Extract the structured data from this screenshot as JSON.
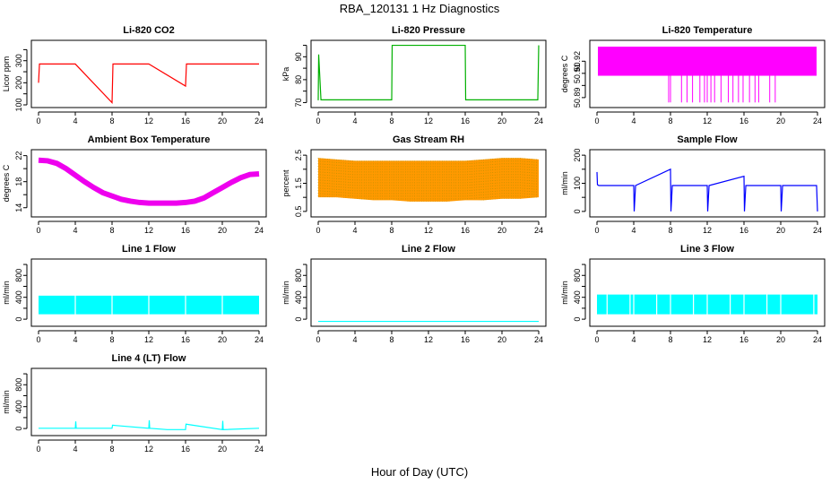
{
  "figure": {
    "title": "RBA_120131  1 Hz Diagnostics",
    "xlabel": "Hour of Day (UTC)"
  },
  "chart_data": [
    {
      "type": "line",
      "title": "Li-820 CO2",
      "ylabel": "Licor ppm",
      "color": "#ff0000",
      "xlim": [
        0,
        24
      ],
      "ylim": [
        100,
        380
      ],
      "xticks": [
        0,
        4,
        8,
        12,
        16,
        20,
        24
      ],
      "yticks": [
        100,
        150,
        200,
        250,
        300,
        350
      ],
      "yticklabels": [
        "100",
        "",
        "200",
        "",
        "300",
        ""
      ],
      "x": [
        0,
        0.1,
        0.3,
        1.0,
        2.0,
        4.0,
        8.0,
        8.1,
        12.0,
        16.0,
        16.1,
        20.0,
        24.0
      ],
      "y": [
        200,
        285,
        285,
        285,
        285,
        285,
        110,
        285,
        285,
        185,
        285,
        285,
        285
      ]
    },
    {
      "type": "line",
      "title": "Li-820 Pressure",
      "ylabel": "kPa",
      "color": "#00b000",
      "xlim": [
        0,
        24
      ],
      "ylim": [
        69,
        96
      ],
      "xticks": [
        0,
        4,
        8,
        12,
        16,
        20,
        24
      ],
      "yticks": [
        70,
        75,
        80,
        85,
        90,
        95
      ],
      "yticklabels": [
        "70",
        "",
        "80",
        "",
        "90",
        ""
      ],
      "x": [
        0,
        0.05,
        0.3,
        8.0,
        8.05,
        16.0,
        16.05,
        23.9,
        24.0
      ],
      "y": [
        71,
        91,
        71.2,
        71.2,
        95,
        95,
        71.2,
        71.2,
        95
      ]
    },
    {
      "type": "line",
      "title": "Li-820 Temperature",
      "ylabel": "degrees C",
      "color": "#ff00ff",
      "xlim": [
        0,
        24
      ],
      "ylim": [
        50.884,
        50.935
      ],
      "xticks": [
        0,
        4,
        8,
        12,
        16,
        20,
        24
      ],
      "yticks": [
        50.89,
        50.9,
        50.91,
        50.92
      ],
      "yticklabels": [
        "50.89",
        "",
        "50.91",
        "50.92"
      ],
      "band": [
        50.908,
        50.932
      ],
      "dips_x": [
        7.8,
        8.0,
        9.2,
        9.8,
        10.4,
        11.2,
        11.7,
        12.0,
        12.4,
        12.8,
        13.5,
        14.3,
        14.8,
        15.4,
        15.9,
        16.6,
        17.2,
        17.6,
        18.8,
        19.4
      ],
      "dips_y": 50.886
    },
    {
      "type": "line",
      "title": "Ambient Box Temperature",
      "ylabel": "degrees C",
      "color": "#ee00ee",
      "xlim": [
        0,
        24
      ],
      "ylim": [
        13,
        22.5
      ],
      "xticks": [
        0,
        4,
        8,
        12,
        16,
        20,
        24
      ],
      "yticks": [
        14,
        16,
        18,
        20,
        22
      ],
      "yticklabels": [
        "14",
        "",
        "18",
        "",
        "22"
      ],
      "x": [
        0,
        1,
        2,
        3,
        4,
        5,
        6,
        7,
        8,
        9,
        10,
        11,
        12,
        13,
        14,
        15,
        16,
        17,
        18,
        19,
        20,
        21,
        22,
        23,
        24
      ],
      "y": [
        21.3,
        21.2,
        20.8,
        20.0,
        19.0,
        18.0,
        17.1,
        16.3,
        15.8,
        15.3,
        15.0,
        14.8,
        14.7,
        14.7,
        14.7,
        14.7,
        14.8,
        15.0,
        15.5,
        16.3,
        17.1,
        17.9,
        18.6,
        19.1,
        19.2
      ]
    },
    {
      "type": "area",
      "title": "Gas Stream RH",
      "ylabel": "percent",
      "color": "#ff9900",
      "secondary_color": "#b89000",
      "xlim": [
        0,
        24
      ],
      "ylim": [
        0.4,
        2.6
      ],
      "xticks": [
        0,
        4,
        8,
        12,
        16,
        20,
        24
      ],
      "yticks": [
        0.5,
        1.0,
        1.5,
        2.0,
        2.5
      ],
      "yticklabels": [
        "0.5",
        "",
        "1.5",
        "",
        "2.5"
      ],
      "x": [
        0,
        2,
        4,
        6,
        8,
        10,
        12,
        14,
        16,
        18,
        20,
        22,
        24
      ],
      "upper": [
        2.4,
        2.35,
        2.3,
        2.3,
        2.3,
        2.3,
        2.3,
        2.3,
        2.3,
        2.35,
        2.4,
        2.4,
        2.35
      ],
      "lower": [
        1.0,
        1.0,
        0.95,
        0.9,
        0.9,
        0.85,
        0.85,
        0.85,
        0.9,
        0.9,
        0.95,
        0.95,
        1.0
      ]
    },
    {
      "type": "line",
      "title": "Sample Flow",
      "ylabel": "ml/min",
      "color": "#0000ff",
      "xlim": [
        0,
        24
      ],
      "ylim": [
        -10,
        210
      ],
      "xticks": [
        0,
        4,
        8,
        12,
        16,
        20,
        24
      ],
      "yticks": [
        0,
        50,
        100,
        150,
        200
      ],
      "yticklabels": [
        "0",
        "",
        "100",
        "",
        "200"
      ],
      "x": [
        0,
        0.05,
        0.2,
        4.0,
        4.05,
        4.2,
        8.0,
        8.05,
        8.2,
        12.0,
        12.05,
        12.2,
        16.0,
        16.05,
        16.2,
        20.0,
        20.05,
        20.2,
        23.9,
        24.0
      ],
      "y": [
        140,
        95,
        92,
        92,
        0,
        92,
        150,
        0,
        92,
        92,
        0,
        92,
        125,
        0,
        92,
        92,
        0,
        92,
        92,
        0
      ]
    },
    {
      "type": "area",
      "title": "Line 1 Flow",
      "ylabel": "ml/min",
      "color": "#00ffff",
      "xlim": [
        0,
        24
      ],
      "ylim": [
        -80,
        1050
      ],
      "xticks": [
        0,
        4,
        8,
        12,
        16,
        20,
        24
      ],
      "yticks": [
        0,
        200,
        400,
        600,
        800,
        1000
      ],
      "yticklabels": [
        "0",
        "",
        "400",
        "",
        "800",
        ""
      ],
      "x": [
        0,
        24
      ],
      "upper": [
        430,
        430
      ],
      "lower": [
        90,
        90
      ],
      "gaps_x": [
        4.0,
        8.0,
        12.0,
        16.0,
        20.0
      ]
    },
    {
      "type": "line",
      "title": "Line 2 Flow",
      "ylabel": "ml/min",
      "color": "#00ffff",
      "xlim": [
        0,
        24
      ],
      "ylim": [
        -80,
        1050
      ],
      "xticks": [
        0,
        4,
        8,
        12,
        16,
        20,
        24
      ],
      "yticks": [
        0,
        200,
        400,
        600,
        800,
        1000
      ],
      "yticklabels": [
        "0",
        "",
        "400",
        "",
        "800",
        ""
      ],
      "x": [
        0,
        24
      ],
      "y": [
        -40,
        -40
      ]
    },
    {
      "type": "area",
      "title": "Line 3 Flow",
      "ylabel": "ml/min",
      "color": "#00ffff",
      "xlim": [
        0,
        24
      ],
      "ylim": [
        -80,
        1050
      ],
      "xticks": [
        0,
        4,
        8,
        12,
        16,
        20,
        24
      ],
      "yticks": [
        0,
        200,
        400,
        600,
        800,
        1000
      ],
      "yticklabels": [
        "0",
        "",
        "400",
        "",
        "800",
        ""
      ],
      "x": [
        0,
        24
      ],
      "upper": [
        450,
        450
      ],
      "lower": [
        90,
        90
      ],
      "gaps_x": [
        1.1,
        3.6,
        4.0,
        6.5,
        8.0,
        10.5,
        12.0,
        14.5,
        16.0,
        18.5,
        20.0,
        23.6
      ]
    },
    {
      "type": "line",
      "title": "Line 4 (LT) Flow",
      "ylabel": "ml/min",
      "color": "#00ffff",
      "xlim": [
        0,
        24
      ],
      "ylim": [
        -80,
        1050
      ],
      "xticks": [
        0,
        4,
        8,
        12,
        16,
        20,
        24
      ],
      "yticks": [
        0,
        200,
        400,
        600,
        800,
        1000
      ],
      "yticklabels": [
        "0",
        "",
        "400",
        "",
        "800",
        ""
      ],
      "x": [
        0,
        4.0,
        4.05,
        4.1,
        8.0,
        8.05,
        12.0,
        12.05,
        12.1,
        14.0,
        16.0,
        16.05,
        20.0,
        20.05,
        20.1,
        24.0
      ],
      "y": [
        5,
        5,
        130,
        5,
        5,
        60,
        5,
        150,
        5,
        -20,
        -20,
        80,
        -20,
        140,
        -20,
        5
      ]
    }
  ]
}
